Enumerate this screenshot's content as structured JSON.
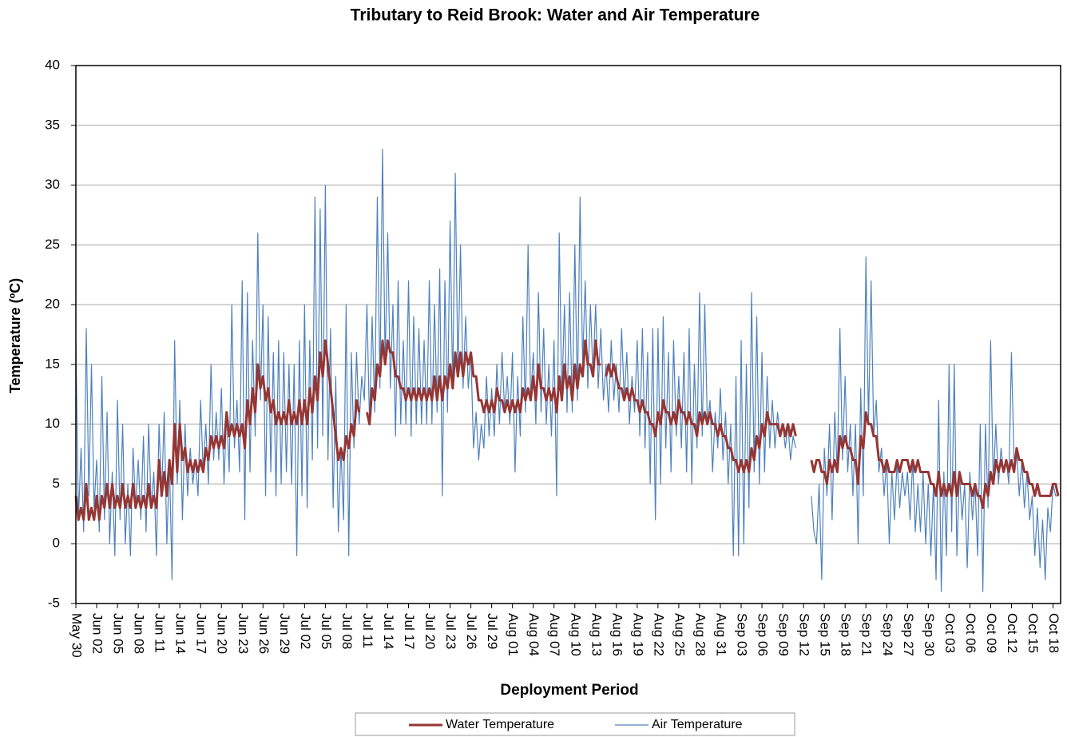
{
  "chart_data": {
    "type": "line",
    "title": "Tributary to Reid Brook: Water and Air Temperature",
    "x_label": "Deployment Period",
    "y_label": "Temperature (ºC)",
    "categories": [
      "May 30",
      null,
      null,
      null,
      null,
      null,
      null,
      null,
      "Jun 02",
      null,
      null,
      null,
      null,
      null,
      null,
      null,
      "Jun 05",
      null,
      null,
      null,
      null,
      null,
      null,
      null,
      "Jun 08",
      null,
      null,
      null,
      null,
      null,
      null,
      null,
      "Jun 11",
      null,
      null,
      null,
      null,
      null,
      null,
      null,
      "Jun 14",
      null,
      null,
      null,
      null,
      null,
      null,
      null,
      "Jun 17",
      null,
      null,
      null,
      null,
      null,
      null,
      null,
      "Jun 20",
      null,
      null,
      null,
      null,
      null,
      null,
      null,
      "Jun 23",
      null,
      null,
      null,
      null,
      null,
      null,
      null,
      "Jun 26",
      null,
      null,
      null,
      null,
      null,
      null,
      null,
      "Jun 29",
      null,
      null,
      null,
      null,
      null,
      null,
      null,
      "Jul 02",
      null,
      null,
      null,
      null,
      null,
      null,
      null,
      "Jul 05",
      null,
      null,
      null,
      null,
      null,
      null,
      null,
      "Jul 08",
      null,
      null,
      null,
      null,
      null,
      null,
      null,
      "Jul 11",
      null,
      null,
      null,
      null,
      null,
      null,
      null,
      "Jul 14",
      null,
      null,
      null,
      null,
      null,
      null,
      null,
      "Jul 17",
      null,
      null,
      null,
      null,
      null,
      null,
      null,
      "Jul 20",
      null,
      null,
      null,
      null,
      null,
      null,
      null,
      "Jul 23",
      null,
      null,
      null,
      null,
      null,
      null,
      null,
      "Jul 26",
      null,
      null,
      null,
      null,
      null,
      null,
      null,
      "Jul 29",
      null,
      null,
      null,
      null,
      null,
      null,
      null,
      "Aug 01",
      null,
      null,
      null,
      null,
      null,
      null,
      null,
      "Aug 04",
      null,
      null,
      null,
      null,
      null,
      null,
      null,
      "Aug 07",
      null,
      null,
      null,
      null,
      null,
      null,
      null,
      "Aug 10",
      null,
      null,
      null,
      null,
      null,
      null,
      null,
      "Aug 13",
      null,
      null,
      null,
      null,
      null,
      null,
      null,
      "Aug 16",
      null,
      null,
      null,
      null,
      null,
      null,
      null,
      "Aug 19",
      null,
      null,
      null,
      null,
      null,
      null,
      null,
      "Aug 22",
      null,
      null,
      null,
      null,
      null,
      null,
      null,
      "Aug 25",
      null,
      null,
      null,
      null,
      null,
      null,
      null,
      "Aug 28",
      null,
      null,
      null,
      null,
      null,
      null,
      null,
      "Aug 31",
      null,
      null,
      null,
      null,
      null,
      null,
      null,
      "Sep 03",
      null,
      null,
      null,
      null,
      null,
      null,
      null,
      "Sep 06",
      null,
      null,
      null,
      null,
      null,
      null,
      null,
      "Sep 09",
      null,
      null,
      null,
      null,
      null,
      null,
      null,
      "Sep 12",
      null,
      null,
      null,
      null,
      null,
      null,
      null,
      "Sep 15",
      null,
      null,
      null,
      null,
      null,
      null,
      null,
      "Sep 18",
      null,
      null,
      null,
      null,
      null,
      null,
      null,
      "Sep 21",
      null,
      null,
      null,
      null,
      null,
      null,
      null,
      "Sep 24",
      null,
      null,
      null,
      null,
      null,
      null,
      null,
      "Sep 27",
      null,
      null,
      null,
      null,
      null,
      null,
      null,
      "Sep 30",
      null,
      null,
      null,
      null,
      null,
      null,
      null,
      "Oct 03",
      null,
      null,
      null,
      null,
      null,
      null,
      null,
      "Oct 06",
      null,
      null,
      null,
      null,
      null,
      null,
      null,
      "Oct 09",
      null,
      null,
      null,
      null,
      null,
      null,
      null,
      "Oct 12",
      null,
      null,
      null,
      null,
      null,
      null,
      null,
      "Oct 15",
      null,
      null,
      null,
      null,
      null,
      null,
      null,
      "Oct 18",
      null,
      null
    ],
    "series": [
      {
        "name": "Air Temperature",
        "color": "#4f81bd",
        "width": 1.2,
        "values": [
          17,
          2,
          8,
          1,
          18,
          4,
          15,
          3,
          7,
          1,
          14,
          2,
          11,
          0,
          6,
          -1,
          12,
          2,
          10,
          0,
          5,
          -1,
          8,
          3,
          7,
          2,
          9,
          1,
          10,
          3,
          6,
          -1,
          10,
          4,
          11,
          0,
          7,
          -3,
          17,
          5,
          12,
          2,
          10,
          4,
          8,
          5,
          7,
          4,
          12,
          6,
          10,
          5,
          15,
          7,
          11,
          7,
          13,
          5,
          11,
          6,
          20,
          8,
          12,
          6,
          22,
          2,
          21,
          6,
          17,
          9,
          26,
          12,
          20,
          4,
          19,
          6,
          16,
          4,
          17,
          5,
          16,
          6,
          15,
          5,
          15,
          -1,
          17,
          4,
          20,
          3,
          17,
          7,
          29,
          8,
          28,
          9,
          30,
          7,
          18,
          3,
          14,
          1,
          8,
          2,
          20,
          -1,
          16,
          8,
          16,
          10,
          14,
          12,
          20,
          10,
          19,
          11,
          29,
          13,
          33,
          15,
          26,
          13,
          20,
          9,
          22,
          10,
          17,
          10,
          22,
          9,
          19,
          10,
          18,
          10,
          17,
          10,
          22,
          10,
          20,
          11,
          23,
          4,
          22,
          11,
          27,
          13,
          31,
          14,
          25,
          13,
          19,
          13,
          16,
          8,
          11,
          7,
          10,
          8,
          14,
          9,
          13,
          9,
          15,
          10,
          16,
          11,
          14,
          10,
          16,
          6,
          14,
          9,
          19,
          11,
          25,
          12,
          16,
          10,
          21,
          11,
          18,
          10,
          15,
          9,
          17,
          4,
          26,
          12,
          20,
          11,
          21,
          11,
          25,
          12,
          29,
          15,
          22,
          13,
          20,
          14,
          20,
          13,
          18,
          12,
          15,
          11,
          17,
          12,
          15,
          11,
          18,
          12,
          16,
          10,
          14,
          11,
          17,
          9,
          18,
          8,
          16,
          5,
          18,
          2,
          18,
          5,
          19,
          8,
          16,
          6,
          17,
          9,
          14,
          8,
          16,
          6,
          18,
          5,
          15,
          8,
          21,
          9,
          20,
          10,
          12,
          6,
          11,
          8,
          13,
          7,
          11,
          5,
          10,
          -1,
          14,
          -1,
          17,
          0,
          15,
          3,
          21,
          6,
          19,
          5,
          16,
          6,
          14,
          8,
          12,
          8,
          11,
          9,
          10,
          8,
          10,
          7,
          9,
          8,
          null,
          null,
          null,
          null,
          null,
          4,
          1,
          0,
          5,
          -3,
          8,
          4,
          10,
          2,
          11,
          6,
          18,
          7,
          14,
          6,
          10,
          4,
          10,
          0,
          13,
          4,
          24,
          10,
          22,
          9,
          12,
          6,
          8,
          4,
          7,
          0,
          6,
          2,
          7,
          3,
          6,
          4,
          6,
          2,
          7,
          1,
          5,
          1,
          6,
          0,
          5,
          -1,
          5,
          -3,
          12,
          -4,
          6,
          -1,
          15,
          1,
          15,
          -1,
          6,
          2,
          5,
          -2,
          6,
          2,
          5,
          -1,
          10,
          -4,
          10,
          3,
          17,
          5,
          10,
          5,
          8,
          6,
          7,
          5,
          16,
          7,
          8,
          4,
          7,
          3,
          6,
          2,
          4,
          -1,
          3,
          -2,
          2,
          -3,
          3,
          1,
          5,
          4,
          4
        ]
      },
      {
        "name": "Water Temperature",
        "color": "#943634",
        "width": 3,
        "values": [
          4,
          2,
          3,
          2,
          5,
          2,
          3,
          2,
          4,
          2,
          4,
          3,
          5,
          3,
          5,
          3,
          4,
          3,
          5,
          3,
          4,
          3,
          5,
          3,
          4,
          3,
          4,
          3,
          5,
          3,
          4,
          3,
          7,
          4,
          6,
          4,
          7,
          5,
          10,
          6,
          10,
          7,
          8,
          6,
          7,
          6,
          7,
          6,
          7,
          6,
          8,
          7,
          9,
          8,
          9,
          8,
          9,
          8,
          11,
          9,
          10,
          9,
          10,
          9,
          10,
          8,
          12,
          10,
          13,
          11,
          15,
          13,
          14,
          12,
          13,
          11,
          12,
          10,
          11,
          10,
          11,
          10,
          12,
          10,
          11,
          10,
          12,
          10,
          12,
          10,
          13,
          11,
          14,
          12,
          16,
          14,
          17,
          15,
          13,
          11,
          9,
          7,
          8,
          7,
          9,
          8,
          10,
          9,
          12,
          11,
          null,
          null,
          11,
          10,
          13,
          12,
          15,
          14,
          17,
          15,
          17,
          16,
          16,
          14,
          14,
          13,
          13,
          12,
          13,
          12,
          13,
          12,
          13,
          12,
          13,
          12,
          13,
          12,
          14,
          12,
          14,
          12,
          14,
          13,
          15,
          13,
          16,
          14,
          16,
          14,
          16,
          15,
          16,
          14,
          14,
          12,
          12,
          11,
          12,
          11,
          12,
          11,
          13,
          12,
          12,
          11,
          12,
          11,
          12,
          11,
          12,
          11,
          13,
          12,
          13,
          12,
          14,
          12,
          15,
          13,
          13,
          12,
          13,
          12,
          13,
          11,
          14,
          12,
          15,
          13,
          14,
          12,
          15,
          13,
          15,
          14,
          17,
          15,
          15,
          14,
          17,
          15,
          15,
          null,
          14,
          15,
          14,
          15,
          14,
          13,
          13,
          12,
          13,
          12,
          13,
          12,
          12,
          11,
          12,
          11,
          11,
          10,
          10,
          9,
          11,
          10,
          12,
          11,
          11,
          10,
          11,
          10,
          12,
          11,
          11,
          10,
          11,
          10,
          10,
          9,
          11,
          10,
          11,
          10,
          11,
          10,
          10,
          9,
          10,
          9,
          9,
          8,
          8,
          7,
          7,
          6,
          7,
          6,
          7,
          6,
          8,
          7,
          9,
          8,
          10,
          9,
          11,
          10,
          10,
          10,
          10,
          9,
          10,
          9,
          10,
          9,
          10,
          9,
          null,
          null,
          null,
          null,
          null,
          7,
          6,
          7,
          7,
          6,
          6,
          5,
          7,
          6,
          7,
          6,
          9,
          8,
          9,
          8,
          8,
          7,
          7,
          5,
          9,
          8,
          11,
          10,
          10,
          9,
          9,
          7,
          7,
          6,
          7,
          6,
          6,
          6,
          7,
          6,
          7,
          7,
          7,
          6,
          7,
          6,
          7,
          6,
          6,
          6,
          6,
          5,
          5,
          4,
          6,
          4,
          5,
          4,
          5,
          4,
          6,
          4,
          6,
          5,
          5,
          5,
          5,
          4,
          5,
          4,
          4,
          3,
          5,
          4,
          6,
          5,
          7,
          6,
          7,
          6,
          7,
          6,
          7,
          6,
          8,
          7,
          7,
          6,
          6,
          5,
          5,
          4,
          5,
          4,
          4,
          4,
          4,
          4,
          5,
          5,
          4
        ]
      }
    ],
    "legend_order": [
      1,
      0
    ],
    "ylim": [
      -5,
      40
    ],
    "yticks": [
      -5,
      0,
      5,
      10,
      15,
      20,
      25,
      30,
      35,
      40
    ],
    "grid": true
  }
}
